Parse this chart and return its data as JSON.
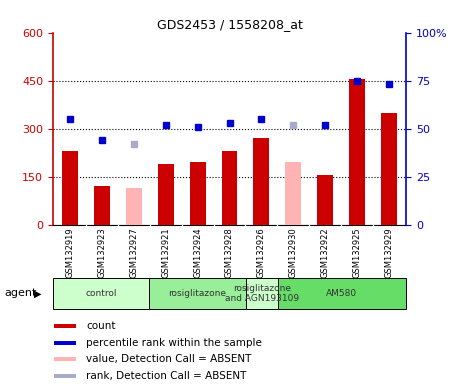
{
  "title": "GDS2453 / 1558208_at",
  "samples": [
    "GSM132919",
    "GSM132923",
    "GSM132927",
    "GSM132921",
    "GSM132924",
    "GSM132928",
    "GSM132926",
    "GSM132930",
    "GSM132922",
    "GSM132925",
    "GSM132929"
  ],
  "bar_values": [
    230,
    120,
    null,
    190,
    195,
    230,
    270,
    null,
    155,
    455,
    350
  ],
  "bar_absent_values": [
    null,
    null,
    115,
    null,
    null,
    null,
    null,
    195,
    null,
    null,
    null
  ],
  "rank_values": [
    395,
    265,
    null,
    370,
    365,
    385,
    395,
    null,
    370,
    null,
    null
  ],
  "rank_absent_values": [
    null,
    null,
    250,
    null,
    null,
    null,
    null,
    370,
    null,
    null,
    null
  ],
  "blue_present_pct": [
    55.0,
    44.0,
    null,
    52.0,
    51.0,
    53.0,
    55.0,
    null,
    52.0,
    75.0,
    73.0
  ],
  "blue_absent_pct": [
    null,
    null,
    42.0,
    null,
    null,
    null,
    null,
    52.0,
    null,
    null,
    null
  ],
  "bar_color": "#cc0000",
  "bar_absent_color": "#ffb3b3",
  "rank_color": "#0000cc",
  "rank_absent_color": "#aaaacc",
  "ylim_left": [
    0,
    600
  ],
  "ylim_right": [
    0,
    100
  ],
  "yticks_left": [
    0,
    150,
    300,
    450,
    600
  ],
  "yticks_right": [
    0,
    25,
    50,
    75,
    100
  ],
  "ytick_labels_left": [
    "0",
    "150",
    "300",
    "450",
    "600"
  ],
  "ytick_labels_right": [
    "0",
    "25",
    "50",
    "75",
    "100%"
  ],
  "agent_groups": [
    {
      "label": "control",
      "start": 0,
      "end": 3,
      "color": "#ccffcc"
    },
    {
      "label": "rosiglitazone",
      "start": 3,
      "end": 6,
      "color": "#99ee99"
    },
    {
      "label": "rosiglitazone\nand AGN193109",
      "start": 6,
      "end": 7,
      "color": "#ccffcc"
    },
    {
      "label": "AM580",
      "start": 7,
      "end": 11,
      "color": "#66dd66"
    }
  ],
  "legend_items": [
    {
      "label": "count",
      "color": "#cc0000"
    },
    {
      "label": "percentile rank within the sample",
      "color": "#0000cc"
    },
    {
      "label": "value, Detection Call = ABSENT",
      "color": "#ffb3b3"
    },
    {
      "label": "rank, Detection Call = ABSENT",
      "color": "#aaaacc"
    }
  ],
  "agent_label": "agent",
  "plot_bg_color": "#ffffff",
  "xtick_bg_color": "#d8d8d8"
}
